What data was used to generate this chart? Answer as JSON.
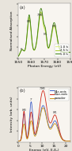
{
  "fig_width": 0.91,
  "fig_height": 1.89,
  "dpi": 100,
  "background": "#e8e4dc",
  "plot_bg": "#f8f5f0",
  "panel_a": {
    "label": "(a)",
    "xlabel": "Photon Energy (eV)",
    "ylabel": "Normalised Absorption",
    "xlim": [
      1550,
      1590
    ],
    "xticks": [
      1550,
      1560,
      1570,
      1580,
      1590
    ],
    "legend": [
      "1.0 h",
      "2.5 h",
      "5.0 h"
    ],
    "legend_colors": [
      "#ddf080",
      "#a8cc30",
      "#3c8010"
    ]
  },
  "panel_b": {
    "label": "(b)",
    "xlabel": "Energy (eV, E-E₀)",
    "ylabel": "Intensity (arb. units)",
    "xlim": [
      0,
      22
    ],
    "xticks": [
      0,
      5,
      10,
      15,
      20
    ],
    "legend": [
      "E∥c-axis",
      "E⊥c-axis",
      "powder"
    ],
    "legend_colors": [
      "#4060c8",
      "#d02818",
      "#c89010"
    ]
  }
}
